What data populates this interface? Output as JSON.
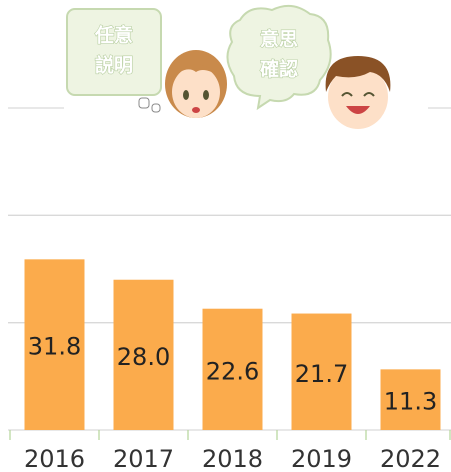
{
  "chart_data": {
    "type": "bar",
    "annotations": [
      [
        "任意",
        "説明"
      ],
      [
        "意思",
        "確認"
      ]
    ],
    "categories": [
      "2016",
      "2017",
      "2018",
      "2019",
      "2022"
    ],
    "values": [
      31.8,
      28.0,
      22.6,
      21.7,
      11.3
    ],
    "value_labels": [
      "31.8",
      "28.0",
      "22.6",
      "21.7",
      "11.3"
    ],
    "color": "#fbab4c",
    "ylim": [
      0,
      60
    ],
    "yticks": [
      0,
      20,
      40,
      60
    ],
    "grid": true
  }
}
